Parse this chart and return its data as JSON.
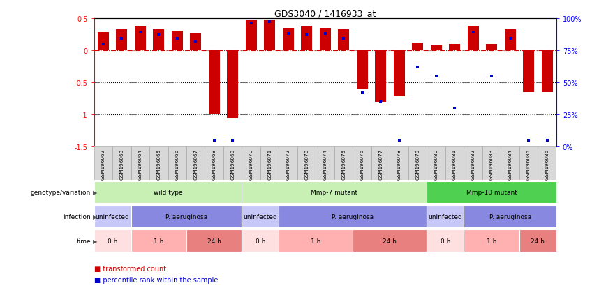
{
  "title": "GDS3040 / 1416933_at",
  "samples": [
    "GSM196062",
    "GSM196063",
    "GSM196064",
    "GSM196065",
    "GSM196066",
    "GSM196067",
    "GSM196068",
    "GSM196069",
    "GSM196070",
    "GSM196071",
    "GSM196072",
    "GSM196073",
    "GSM196074",
    "GSM196075",
    "GSM196076",
    "GSM196077",
    "GSM196078",
    "GSM196079",
    "GSM196080",
    "GSM196081",
    "GSM196082",
    "GSM196083",
    "GSM196084",
    "GSM196085",
    "GSM196086"
  ],
  "bar_values": [
    0.28,
    0.33,
    0.37,
    0.32,
    0.3,
    0.26,
    -1.0,
    -1.05,
    0.47,
    0.48,
    0.35,
    0.38,
    0.35,
    0.32,
    -0.6,
    -0.8,
    -0.72,
    0.12,
    0.08,
    0.1,
    0.38,
    0.1,
    0.32,
    -0.65,
    -0.65
  ],
  "percentile_values": [
    80,
    84,
    89,
    87,
    84,
    82,
    5,
    5,
    96,
    97,
    88,
    87,
    88,
    84,
    42,
    35,
    5,
    62,
    55,
    30,
    89,
    55,
    84,
    5,
    5
  ],
  "ylim_left": [
    -1.5,
    0.5
  ],
  "ylim_right": [
    0,
    100
  ],
  "yticks_left": [
    -1.5,
    -1.0,
    -0.5,
    0.0,
    0.5
  ],
  "yticks_left_labels": [
    "-1.5",
    "-1",
    "-0.5",
    "0",
    "0.5"
  ],
  "yticks_right": [
    0,
    25,
    50,
    75,
    100
  ],
  "ytick_labels_right": [
    "0%",
    "25%",
    "50%",
    "75%",
    "100%"
  ],
  "dotted_lines": [
    -0.5,
    -1.0
  ],
  "genotype_groups": [
    {
      "label": "wild type",
      "start": 0,
      "end": 7,
      "color": "#c8f0b4"
    },
    {
      "label": "Mmp-7 mutant",
      "start": 8,
      "end": 17,
      "color": "#c8f0b4"
    },
    {
      "label": "Mmp-10 mutant",
      "start": 18,
      "end": 24,
      "color": "#50d050"
    }
  ],
  "infection_groups": [
    {
      "label": "uninfected",
      "start": 0,
      "end": 1,
      "color": "#c8c8f8"
    },
    {
      "label": "P. aeruginosa",
      "start": 2,
      "end": 7,
      "color": "#8888e0"
    },
    {
      "label": "uninfected",
      "start": 8,
      "end": 9,
      "color": "#c8c8f8"
    },
    {
      "label": "P. aeruginosa",
      "start": 10,
      "end": 17,
      "color": "#8888e0"
    },
    {
      "label": "uninfected",
      "start": 18,
      "end": 19,
      "color": "#c8c8f8"
    },
    {
      "label": "P. aeruginosa",
      "start": 20,
      "end": 24,
      "color": "#8888e0"
    }
  ],
  "time_groups": [
    {
      "label": "0 h",
      "start": 0,
      "end": 1,
      "color": "#ffe0e0"
    },
    {
      "label": "1 h",
      "start": 2,
      "end": 4,
      "color": "#ffb0b0"
    },
    {
      "label": "24 h",
      "start": 5,
      "end": 7,
      "color": "#e88080"
    },
    {
      "label": "0 h",
      "start": 8,
      "end": 9,
      "color": "#ffe0e0"
    },
    {
      "label": "1 h",
      "start": 10,
      "end": 13,
      "color": "#ffb0b0"
    },
    {
      "label": "24 h",
      "start": 14,
      "end": 17,
      "color": "#e88080"
    },
    {
      "label": "0 h",
      "start": 18,
      "end": 19,
      "color": "#ffe0e0"
    },
    {
      "label": "1 h",
      "start": 20,
      "end": 22,
      "color": "#ffb0b0"
    },
    {
      "label": "24 h",
      "start": 23,
      "end": 24,
      "color": "#e88080"
    }
  ],
  "row_labels": [
    "genotype/variation",
    "infection",
    "time"
  ],
  "bar_color": "#cc0000",
  "dot_color": "#0000cc",
  "hline_color": "#cc0000",
  "sample_bg_color": "#d8d8d8",
  "sample_border_color": "#aaaaaa"
}
